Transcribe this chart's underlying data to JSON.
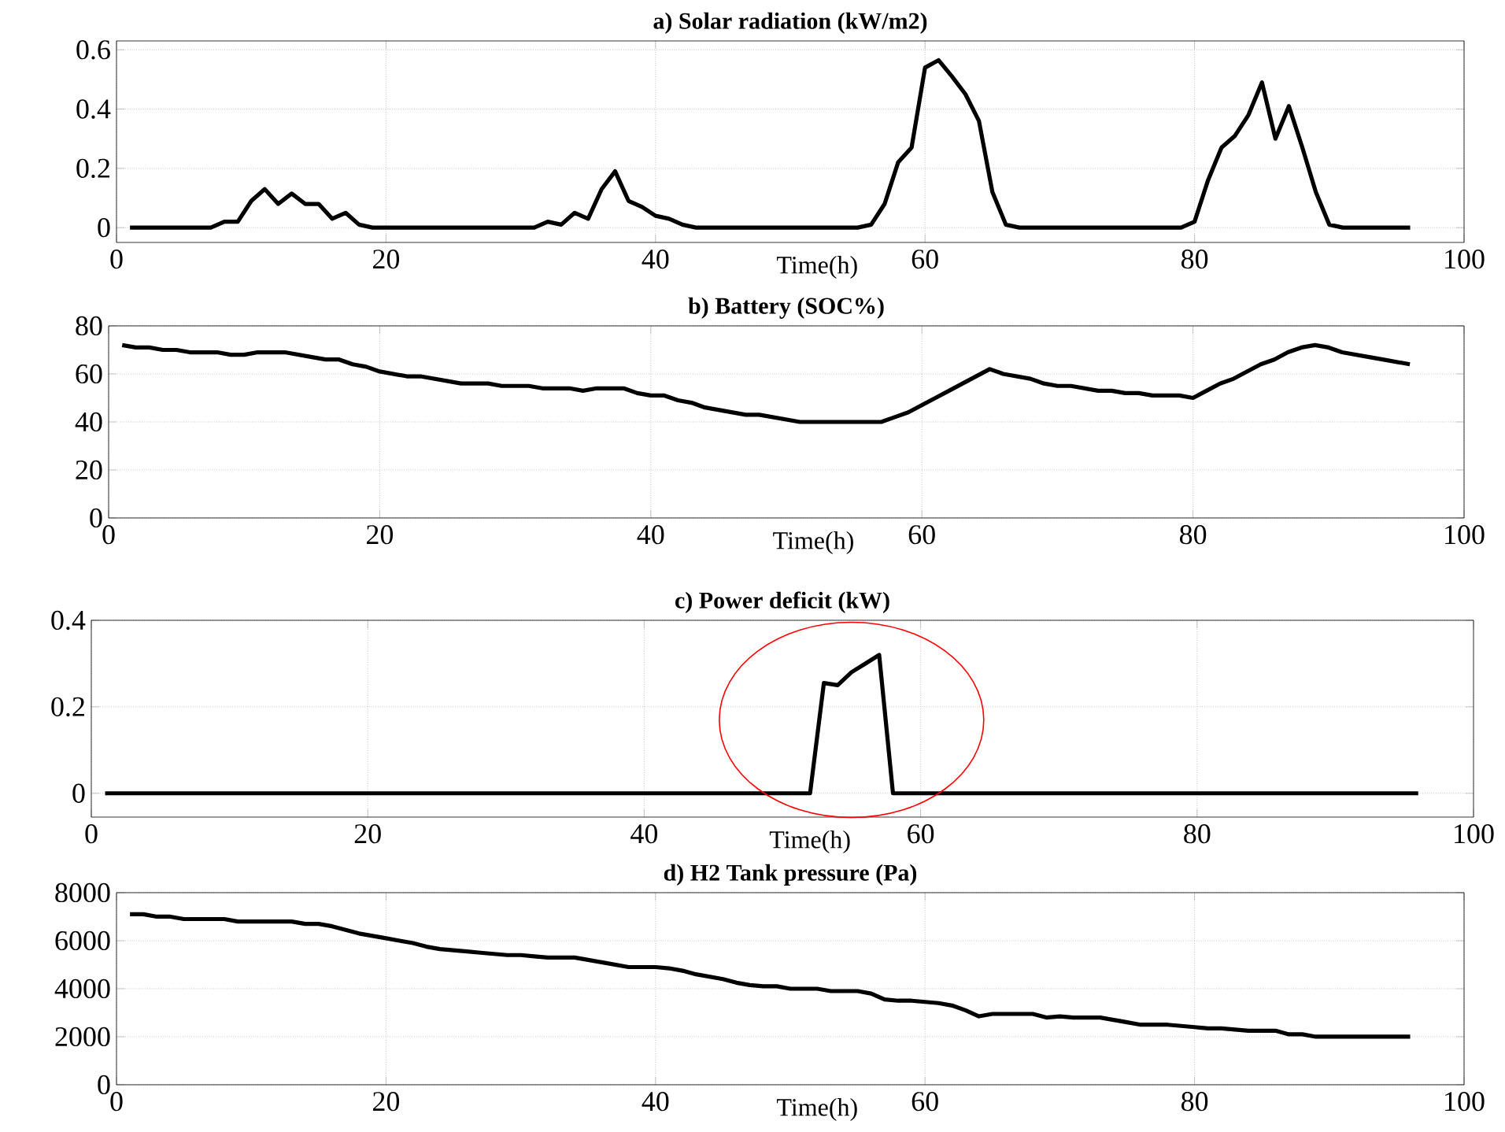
{
  "chart_data": [
    {
      "type": "line",
      "title": "a) Solar radiation (kW/m2)",
      "xlabel": "Time(h)",
      "xlim": [
        0,
        100
      ],
      "xticks": [
        0,
        20,
        40,
        60,
        80,
        100
      ],
      "ylim": [
        -0.05,
        0.63
      ],
      "yticks": [
        0,
        0.2,
        0.4,
        0.6
      ],
      "grid": true,
      "x": [
        1,
        2,
        3,
        4,
        5,
        6,
        7,
        8,
        9,
        10,
        11,
        12,
        13,
        14,
        15,
        16,
        17,
        18,
        19,
        20,
        21,
        22,
        23,
        24,
        25,
        26,
        27,
        28,
        29,
        30,
        31,
        32,
        33,
        34,
        35,
        36,
        37,
        38,
        39,
        40,
        41,
        42,
        43,
        44,
        45,
        46,
        47,
        48,
        49,
        50,
        51,
        52,
        53,
        54,
        55,
        56,
        57,
        58,
        59,
        60,
        61,
        62,
        63,
        64,
        65,
        66,
        67,
        68,
        69,
        70,
        71,
        72,
        73,
        74,
        75,
        76,
        77,
        78,
        79,
        80,
        81,
        82,
        83,
        84,
        85,
        86,
        87,
        88,
        89,
        90,
        91,
        92,
        93,
        94,
        95,
        96
      ],
      "series": [
        {
          "color": "#000000",
          "values": [
            0,
            0,
            0,
            0,
            0,
            0,
            0,
            0.02,
            0.02,
            0.09,
            0.13,
            0.08,
            0.115,
            0.08,
            0.08,
            0.03,
            0.05,
            0.01,
            0,
            0,
            0,
            0,
            0,
            0,
            0,
            0,
            0,
            0,
            0,
            0,
            0,
            0.02,
            0.01,
            0.05,
            0.03,
            0.13,
            0.19,
            0.09,
            0.07,
            0.04,
            0.03,
            0.01,
            0,
            0,
            0,
            0,
            0,
            0,
            0,
            0,
            0,
            0,
            0,
            0,
            0,
            0.01,
            0.08,
            0.22,
            0.27,
            0.54,
            0.565,
            0.51,
            0.45,
            0.36,
            0.12,
            0.01,
            0,
            0,
            0,
            0,
            0,
            0,
            0,
            0,
            0,
            0,
            0,
            0,
            0,
            0.02,
            0.16,
            0.27,
            0.31,
            0.38,
            0.49,
            0.3,
            0.41,
            0.27,
            0.12,
            0.01,
            0,
            0,
            0,
            0,
            0,
            0
          ]
        }
      ]
    },
    {
      "type": "line",
      "title": "b) Battery (SOC%)",
      "xlabel": "Time(h)",
      "xlim": [
        0,
        100
      ],
      "xticks": [
        0,
        20,
        40,
        60,
        80,
        100
      ],
      "ylim": [
        0,
        80
      ],
      "yticks": [
        0,
        20,
        40,
        60,
        80
      ],
      "grid": true,
      "x": [
        1,
        2,
        3,
        4,
        5,
        6,
        7,
        8,
        9,
        10,
        11,
        12,
        13,
        14,
        15,
        16,
        17,
        18,
        19,
        20,
        21,
        22,
        23,
        24,
        25,
        26,
        27,
        28,
        29,
        30,
        31,
        32,
        33,
        34,
        35,
        36,
        37,
        38,
        39,
        40,
        41,
        42,
        43,
        44,
        45,
        46,
        47,
        48,
        49,
        50,
        51,
        52,
        53,
        54,
        55,
        56,
        57,
        58,
        59,
        60,
        61,
        62,
        63,
        64,
        65,
        66,
        67,
        68,
        69,
        70,
        71,
        72,
        73,
        74,
        75,
        76,
        77,
        78,
        79,
        80,
        81,
        82,
        83,
        84,
        85,
        86,
        87,
        88,
        89,
        90,
        91,
        92,
        93,
        94,
        95,
        96
      ],
      "series": [
        {
          "color": "#000000",
          "values": [
            72,
            71,
            71,
            70,
            70,
            69,
            69,
            69,
            68,
            68,
            69,
            69,
            69,
            68,
            67,
            66,
            66,
            64,
            63,
            61,
            60,
            59,
            59,
            58,
            57,
            56,
            56,
            56,
            55,
            55,
            55,
            54,
            54,
            54,
            53,
            54,
            54,
            54,
            52,
            51,
            51,
            49,
            48,
            46,
            45,
            44,
            43,
            43,
            42,
            41,
            40,
            40,
            40,
            40,
            40,
            40,
            40,
            42,
            44,
            47,
            50,
            53,
            56,
            59,
            62,
            60,
            59,
            58,
            56,
            55,
            55,
            54,
            53,
            53,
            52,
            52,
            51,
            51,
            51,
            50,
            53,
            56,
            58,
            61,
            64,
            66,
            69,
            71,
            72,
            71,
            69,
            68,
            67,
            66,
            65,
            64
          ]
        }
      ]
    },
    {
      "type": "line",
      "title": "c) Power deficit (kW)",
      "xlabel": "Time(h)",
      "xlim": [
        0,
        100
      ],
      "xticks": [
        0,
        20,
        40,
        60,
        80,
        100
      ],
      "ylim": [
        -0.055,
        0.4
      ],
      "yticks": [
        0,
        0.2,
        0.4
      ],
      "grid": true,
      "x": [
        1,
        2,
        3,
        4,
        5,
        6,
        7,
        8,
        9,
        10,
        11,
        12,
        13,
        14,
        15,
        16,
        17,
        18,
        19,
        20,
        21,
        22,
        23,
        24,
        25,
        26,
        27,
        28,
        29,
        30,
        31,
        32,
        33,
        34,
        35,
        36,
        37,
        38,
        39,
        40,
        41,
        42,
        43,
        44,
        45,
        46,
        47,
        48,
        49,
        50,
        51,
        52,
        53,
        54,
        55,
        56,
        57,
        58,
        59,
        60,
        61,
        62,
        63,
        64,
        65,
        66,
        67,
        68,
        69,
        70,
        71,
        72,
        73,
        74,
        75,
        76,
        77,
        78,
        79,
        80,
        81,
        82,
        83,
        84,
        85,
        86,
        87,
        88,
        89,
        90,
        91,
        92,
        93,
        94,
        95,
        96
      ],
      "series": [
        {
          "color": "#000000",
          "values": [
            0,
            0,
            0,
            0,
            0,
            0,
            0,
            0,
            0,
            0,
            0,
            0,
            0,
            0,
            0,
            0,
            0,
            0,
            0,
            0,
            0,
            0,
            0,
            0,
            0,
            0,
            0,
            0,
            0,
            0,
            0,
            0,
            0,
            0,
            0,
            0,
            0,
            0,
            0,
            0,
            0,
            0,
            0,
            0,
            0,
            0,
            0,
            0,
            0,
            0,
            0,
            0,
            0.255,
            0.25,
            0.28,
            0.3,
            0.32,
            0,
            0,
            0,
            0,
            0,
            0,
            0,
            0,
            0,
            0,
            0,
            0,
            0,
            0,
            0,
            0,
            0,
            0,
            0,
            0,
            0,
            0,
            0,
            0,
            0,
            0,
            0,
            0,
            0,
            0,
            0,
            0,
            0,
            0,
            0,
            0,
            0,
            0,
            0
          ]
        }
      ]
    },
    {
      "type": "line",
      "title": "d) H2 Tank pressure (Pa)",
      "xlabel": "Time(h)",
      "xlim": [
        0,
        100
      ],
      "xticks": [
        0,
        20,
        40,
        60,
        80,
        100
      ],
      "ylim": [
        0,
        8000
      ],
      "yticks": [
        0,
        2000,
        4000,
        6000,
        8000
      ],
      "grid": true,
      "x": [
        1,
        2,
        3,
        4,
        5,
        6,
        7,
        8,
        9,
        10,
        11,
        12,
        13,
        14,
        15,
        16,
        17,
        18,
        19,
        20,
        21,
        22,
        23,
        24,
        25,
        26,
        27,
        28,
        29,
        30,
        31,
        32,
        33,
        34,
        35,
        36,
        37,
        38,
        39,
        40,
        41,
        42,
        43,
        44,
        45,
        46,
        47,
        48,
        49,
        50,
        51,
        52,
        53,
        54,
        55,
        56,
        57,
        58,
        59,
        60,
        61,
        62,
        63,
        64,
        65,
        66,
        67,
        68,
        69,
        70,
        71,
        72,
        73,
        74,
        75,
        76,
        77,
        78,
        79,
        80,
        81,
        82,
        83,
        84,
        85,
        86,
        87,
        88,
        89,
        90,
        91,
        92,
        93,
        94,
        95,
        96
      ],
      "series": [
        {
          "color": "#000000",
          "values": [
            7100,
            7100,
            7000,
            7000,
            6900,
            6900,
            6900,
            6900,
            6800,
            6800,
            6800,
            6800,
            6800,
            6700,
            6700,
            6600,
            6450,
            6300,
            6200,
            6100,
            6000,
            5900,
            5750,
            5650,
            5600,
            5550,
            5500,
            5450,
            5400,
            5400,
            5350,
            5300,
            5300,
            5300,
            5200,
            5100,
            5000,
            4900,
            4900,
            4900,
            4850,
            4750,
            4600,
            4500,
            4400,
            4250,
            4150,
            4100,
            4100,
            4000,
            4000,
            4000,
            3900,
            3900,
            3900,
            3800,
            3550,
            3500,
            3500,
            3450,
            3400,
            3300,
            3100,
            2850,
            2950,
            2950,
            2950,
            2950,
            2800,
            2850,
            2800,
            2800,
            2800,
            2700,
            2600,
            2500,
            2500,
            2500,
            2450,
            2400,
            2350,
            2350,
            2300,
            2250,
            2250,
            2250,
            2100,
            2100,
            2000,
            2000,
            2000,
            2000,
            2000,
            2000,
            2000,
            2000
          ]
        }
      ]
    }
  ]
}
